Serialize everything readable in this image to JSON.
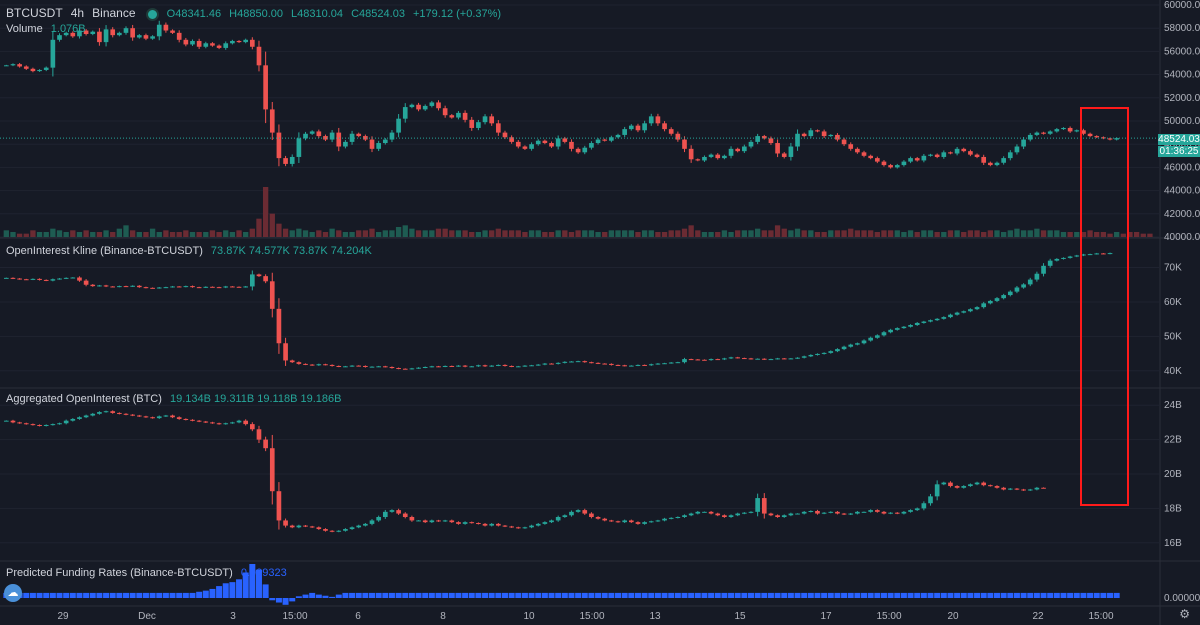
{
  "header": {
    "symbol": "BTCUSDT",
    "interval": "4h",
    "exchange": "Binance",
    "open": "O48341.46",
    "high": "H48850.00",
    "low": "L48310.04",
    "close": "C48524.03",
    "change": "+179.12 (+0.37%)"
  },
  "volume_legend": {
    "label": "Volume",
    "value": "1.076B"
  },
  "oi_kline_legend": {
    "label": "OpenInterest Kline (Binance-BTCUSDT)",
    "values": "73.87K 74.577K 73.87K 74.204K"
  },
  "agg_oi_legend": {
    "label": "Aggregated OpenInterest (BTC)",
    "values": "19.134B 19.311B 19.118B 19.186B"
  },
  "funding_legend": {
    "label": "Predicted Funding Rates (Binance-BTCUSDT)",
    "value": "0.009323"
  },
  "price_tag": {
    "price": "48524.03",
    "countdown": "01:36:25"
  },
  "colors": {
    "up": "#26a69a",
    "down": "#ef5350",
    "background": "#161a25",
    "highlight": "#ff0000",
    "funding": "#2962ff"
  },
  "icons": {
    "settings": "gear-icon",
    "logo": "cloud-logo-icon",
    "status": "status-dot-icon"
  },
  "chart_data": [
    {
      "type": "candlestick",
      "title": "BTCUSDT 4h Binance",
      "y_ticks": [
        "60000.00",
        "58000.00",
        "56000.00",
        "54000.00",
        "52000.00",
        "50000.00",
        "48000.00",
        "46000.00",
        "44000.00",
        "42000.00",
        "40000.00"
      ],
      "ylim": [
        40000,
        60000
      ],
      "x_ticks": [
        "29",
        "Dec",
        "3",
        "15:00",
        "6",
        "8",
        "10",
        "15:00",
        "13",
        "15",
        "17",
        "15:00",
        "20",
        "22",
        "15:00"
      ],
      "close": [
        54800,
        54900,
        54700,
        54500,
        54300,
        54400,
        54600,
        57000,
        57400,
        57600,
        57300,
        57800,
        57500,
        57700,
        56800,
        57900,
        57400,
        57600,
        58000,
        57200,
        57400,
        57100,
        57300,
        58300,
        57800,
        57600,
        57000,
        56600,
        56900,
        56400,
        56700,
        56500,
        56300,
        56700,
        56900,
        56800,
        57000,
        56400,
        54800,
        51000,
        49000,
        46800,
        46300,
        46900,
        48500,
        48900,
        49100,
        48700,
        48400,
        49000,
        47800,
        48200,
        48900,
        48700,
        48400,
        47600,
        48100,
        48400,
        49000,
        50200,
        51200,
        51400,
        51000,
        51300,
        51600,
        51100,
        50500,
        50300,
        50700,
        50100,
        49400,
        49900,
        50400,
        49800,
        49000,
        48600,
        48200,
        47800,
        47600,
        48000,
        48300,
        48100,
        47800,
        48500,
        48200,
        47600,
        47300,
        47700,
        48100,
        48400,
        48300,
        48600,
        48800,
        49300,
        49600,
        49200,
        49800,
        50400,
        49800,
        49300,
        48900,
        48400,
        47600,
        46700,
        46600,
        46900,
        47100,
        46800,
        47000,
        47600,
        47400,
        47800,
        48200,
        48700,
        48500,
        48100,
        47200,
        46900,
        47800,
        48900,
        48700,
        49200,
        49100,
        48700,
        48800,
        48400,
        48000,
        47600,
        47300,
        47000,
        46800,
        46500,
        46200,
        46000,
        46200,
        46500,
        46800,
        46600,
        47000,
        47100,
        46900,
        47300,
        47200,
        47600,
        47400,
        47100,
        46900,
        46400,
        46200,
        46400,
        46800,
        47300,
        47800,
        48400,
        48800,
        49000,
        48900,
        49100,
        49300,
        49400,
        49100,
        49200,
        48900,
        48700,
        48600,
        48500,
        48400,
        48524
      ]
    },
    {
      "type": "bar",
      "title": "Volume",
      "values": [
        4,
        3,
        2,
        2,
        4,
        3,
        3,
        5,
        4,
        3,
        4,
        3,
        4,
        3,
        3,
        4,
        3,
        5,
        7,
        4,
        3,
        3,
        5,
        3,
        4,
        3,
        3,
        4,
        3,
        3,
        3,
        4,
        3,
        4,
        3,
        4,
        3,
        5,
        11,
        30,
        14,
        8,
        5,
        4,
        5,
        4,
        3,
        4,
        3,
        5,
        4,
        3,
        3,
        4,
        4,
        5,
        3,
        4,
        4,
        6,
        7,
        5,
        4,
        4,
        4,
        5,
        5,
        4,
        4,
        4,
        3,
        3,
        4,
        4,
        5,
        4,
        4,
        4,
        3,
        4,
        4,
        3,
        3,
        4,
        4,
        3,
        4,
        4,
        4,
        3,
        3,
        4,
        4,
        4,
        4,
        3,
        4,
        4,
        3,
        3,
        4,
        4,
        5,
        7,
        4,
        3,
        3,
        3,
        4,
        3,
        4,
        4,
        4,
        5,
        4,
        4,
        7,
        5,
        4,
        5,
        4,
        4,
        3,
        3,
        4,
        4,
        4,
        5,
        4,
        4,
        4,
        3,
        4,
        4,
        4,
        3,
        4,
        3,
        4,
        4,
        3,
        3,
        4,
        4,
        3,
        4,
        4,
        3,
        4,
        4,
        3,
        4,
        5,
        4,
        4,
        5,
        4,
        4,
        4,
        3,
        3,
        3,
        3,
        4,
        3,
        3,
        2,
        3,
        2,
        3,
        3,
        2,
        2
      ]
    },
    {
      "type": "candlestick",
      "title": "OpenInterest Kline (Binance-BTCUSDT)",
      "y_ticks": [
        "70K",
        "60K",
        "50K",
        "40K"
      ],
      "ylim": [
        35000,
        78000
      ],
      "close": [
        67000,
        66800,
        66600,
        66500,
        66700,
        66400,
        66200,
        66600,
        66800,
        67000,
        67100,
        66200,
        65000,
        64600,
        64800,
        64500,
        64400,
        64600,
        64500,
        64700,
        64300,
        64100,
        64000,
        64200,
        64300,
        64500,
        64400,
        64600,
        64300,
        64200,
        64400,
        64300,
        64200,
        64500,
        64400,
        64300,
        64500,
        68000,
        67500,
        66000,
        58000,
        48000,
        43000,
        42500,
        42000,
        41800,
        41600,
        41900,
        41700,
        41400,
        41200,
        41300,
        41500,
        41400,
        41100,
        41200,
        41300,
        41100,
        40800,
        40600,
        40500,
        40700,
        40900,
        41100,
        41300,
        41200,
        41400,
        41300,
        41500,
        41200,
        41300,
        41600,
        41300,
        41500,
        41700,
        41400,
        41200,
        41300,
        41500,
        41600,
        41800,
        42100,
        42000,
        42300,
        42600,
        42700,
        42800,
        42500,
        42300,
        42100,
        42000,
        41700,
        41600,
        41400,
        41500,
        41700,
        41600,
        41900,
        42100,
        42200,
        42400,
        42500,
        43400,
        43300,
        43200,
        43100,
        43400,
        43300,
        43600,
        43900,
        43700,
        43600,
        43400,
        43500,
        43300,
        43400,
        43600,
        43500,
        43600,
        43800,
        44200,
        44600,
        44900,
        45200,
        45700,
        46300,
        47000,
        47600,
        48000,
        48800,
        49600,
        50300,
        51200,
        51900,
        52400,
        52800,
        53300,
        53900,
        54300,
        54700,
        55100,
        55600,
        56300,
        56900,
        57300,
        57900,
        58500,
        59600,
        60300,
        61100,
        62000,
        63000,
        64200,
        65100,
        66500,
        68200,
        70500,
        72000,
        72500,
        72800,
        73200,
        73500,
        73800,
        73900,
        74100,
        74000,
        74200
      ]
    },
    {
      "type": "candlestick",
      "title": "Aggregated OpenInterest (BTC)",
      "y_ticks": [
        "24B",
        "22B",
        "20B",
        "18B",
        "16B"
      ],
      "ylim": [
        15000000000,
        25000000000
      ],
      "close": [
        23100000000,
        23000000000,
        22950000000,
        22900000000,
        22850000000,
        22800000000,
        22850000000,
        22900000000,
        22950000000,
        23100000000,
        23200000000,
        23300000000,
        23400000000,
        23500000000,
        23600000000,
        23650000000,
        23550000000,
        23500000000,
        23450000000,
        23400000000,
        23350000000,
        23300000000,
        23250000000,
        23350000000,
        23400000000,
        23300000000,
        23200000000,
        23150000000,
        23100000000,
        23050000000,
        23000000000,
        22950000000,
        22900000000,
        22950000000,
        23000000000,
        23100000000,
        22900000000,
        22600000000,
        22000000000,
        21500000000,
        19000000000,
        17300000000,
        17000000000,
        16900000000,
        17000000000,
        16950000000,
        16900000000,
        16800000000,
        16700000000,
        16650000000,
        16700000000,
        16800000000,
        16900000000,
        17000000000,
        17100000000,
        17300000000,
        17500000000,
        17800000000,
        17900000000,
        17700000000,
        17500000000,
        17300000000,
        17300000000,
        17200000000,
        17300000000,
        17250000000,
        17300000000,
        17200000000,
        17100000000,
        17200000000,
        17150000000,
        17100000000,
        17000000000,
        17100000000,
        17000000000,
        16950000000,
        16900000000,
        16850000000,
        16900000000,
        17000000000,
        17100000000,
        17200000000,
        17300000000,
        17500000000,
        17600000000,
        17800000000,
        17900000000,
        17700000000,
        17500000000,
        17400000000,
        17300000000,
        17250000000,
        17200000000,
        17300000000,
        17200000000,
        17100000000,
        17200000000,
        17250000000,
        17300000000,
        17400000000,
        17450000000,
        17500000000,
        17600000000,
        17700000000,
        17800000000,
        17800000000,
        17700000000,
        17600000000,
        17500000000,
        17600000000,
        17700000000,
        17750000000,
        17800000000,
        18600000000,
        17700000000,
        17600000000,
        17500000000,
        17600000000,
        17700000000,
        17700000000,
        17800000000,
        17850000000,
        17700000000,
        17750000000,
        17800000000,
        17700000000,
        17650000000,
        17700000000,
        17800000000,
        17800000000,
        17900000000,
        17800000000,
        17700000000,
        17750000000,
        17700000000,
        17800000000,
        17900000000,
        18000000000,
        18300000000,
        18700000000,
        19400000000,
        19500000000,
        19300000000,
        19200000000,
        19300000000,
        19400000000,
        19500000000,
        19350000000,
        19300000000,
        19200000000,
        19100000000,
        19150000000,
        19100000000,
        19050000000,
        19100000000,
        19200000000,
        19186000000
      ]
    },
    {
      "type": "bar",
      "title": "Predicted Funding Rates (Binance-BTCUSDT)",
      "y_ticks": [
        "0.000000"
      ],
      "values": [
        0.009,
        0.009,
        0.009,
        0.009,
        0.009,
        0.009,
        0.009,
        0.009,
        0.009,
        0.009,
        0.009,
        0.009,
        0.009,
        0.009,
        0.009,
        0.009,
        0.009,
        0.009,
        0.009,
        0.009,
        0.009,
        0.009,
        0.009,
        0.009,
        0.009,
        0.009,
        0.009,
        0.009,
        0.009,
        0.011,
        0.013,
        0.016,
        0.021,
        0.026,
        0.028,
        0.033,
        0.045,
        0.06,
        0.05,
        0.024,
        -0.004,
        -0.008,
        -0.012,
        -0.006,
        0.003,
        0.006,
        0.009,
        0.006,
        0.004,
        0.002,
        0.006,
        0.009,
        0.009,
        0.009,
        0.009,
        0.009,
        0.009,
        0.009,
        0.009,
        0.009,
        0.009,
        0.009,
        0.009,
        0.009,
        0.009,
        0.009,
        0.009,
        0.009,
        0.009,
        0.009,
        0.009,
        0.009,
        0.009,
        0.009,
        0.009,
        0.009,
        0.009,
        0.009,
        0.009,
        0.009,
        0.009,
        0.009,
        0.009,
        0.009,
        0.009,
        0.009,
        0.009,
        0.009,
        0.009,
        0.009,
        0.009,
        0.009,
        0.009,
        0.009,
        0.009,
        0.009,
        0.009,
        0.009,
        0.009,
        0.009,
        0.009,
        0.009,
        0.009,
        0.009,
        0.009,
        0.009,
        0.009,
        0.009,
        0.009,
        0.009,
        0.009,
        0.009,
        0.009,
        0.009,
        0.009,
        0.009,
        0.009,
        0.009,
        0.009,
        0.009,
        0.009,
        0.009,
        0.009,
        0.009,
        0.009,
        0.009,
        0.009,
        0.009,
        0.009,
        0.009,
        0.009,
        0.009,
        0.009,
        0.009,
        0.009,
        0.009,
        0.009,
        0.009,
        0.009,
        0.009,
        0.009,
        0.009,
        0.009,
        0.009,
        0.009,
        0.009,
        0.009,
        0.009,
        0.009,
        0.009,
        0.009,
        0.009,
        0.009,
        0.009,
        0.009,
        0.009,
        0.009,
        0.009,
        0.009,
        0.009,
        0.009,
        0.009,
        0.009,
        0.009,
        0.009,
        0.009,
        0.009,
        0.009
      ]
    }
  ]
}
